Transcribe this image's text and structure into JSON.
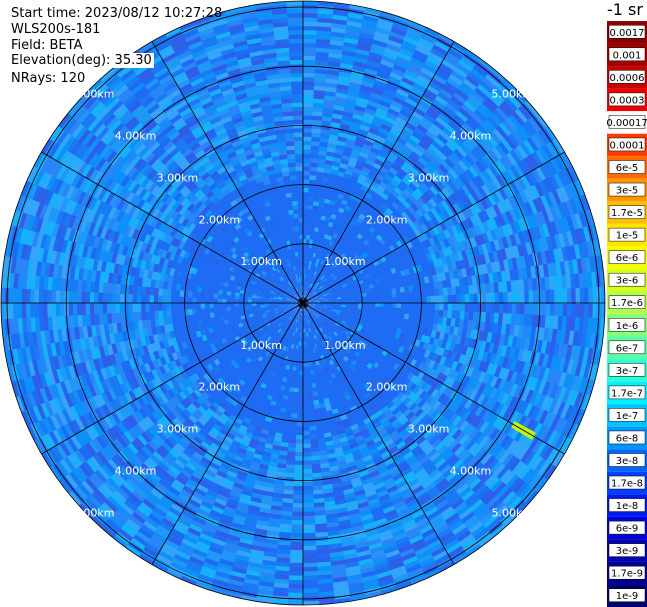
{
  "header": {
    "start_time": "Start time: 2023/08/12 10:27:28",
    "device": "WLS200s-181",
    "field": "Field: BETA",
    "elevation": "Elevation(deg): 35.30",
    "nrays": "NRays: 120"
  },
  "colorbar": {
    "title": "-1 sr",
    "ticks": [
      "0.0017",
      "0.001",
      "0.0006",
      "0.0003",
      "0.00017",
      "0.0001",
      "6e-5",
      "3e-5",
      "1.7e-5",
      "1e-5",
      "6e-6",
      "3e-6",
      "1.7e-6",
      "1e-6",
      "6e-7",
      "3e-7",
      "1.7e-7",
      "1e-7",
      "6e-8",
      "3e-8",
      "1.7e-8",
      "1e-8",
      "6e-9",
      "3e-9",
      "1.7e-9",
      "1e-9"
    ],
    "colors": [
      "#8b0000",
      "#a00000",
      "#c80000",
      "#ee0000",
      "#ffffff",
      "#ff3a00",
      "#ff6a00",
      "#ff9500",
      "#ffbf00",
      "#ffe400",
      "#f2ff00",
      "#d6ff1a",
      "#b4ff4a",
      "#86ff7a",
      "#5affa5",
      "#2dffd2",
      "#00f0ff",
      "#00c4ff",
      "#0096ff",
      "#0066ff",
      "#0040ff",
      "#0018f0",
      "#0000d8",
      "#0000b4",
      "#000090",
      "#000070"
    ]
  },
  "chart_data": {
    "type": "heatmap",
    "subtype": "polar PPI scan",
    "field": "BETA",
    "units": "-1 sr",
    "range_rings_km": [
      1,
      2,
      3,
      4,
      5
    ],
    "ring_labels": [
      "1.00km",
      "2.00km",
      "3.00km",
      "4.00km",
      "5.00km"
    ],
    "radial_spokes_deg": [
      0,
      30,
      60,
      90,
      120,
      150,
      180,
      210,
      240,
      270,
      300,
      330
    ],
    "max_range_km": 5.1,
    "nrays": 120,
    "dominant_value_band": [
      "1e-8",
      "1e-7"
    ],
    "hotspot": {
      "azimuth_deg": 120,
      "range_km": 4.3,
      "value": "1.7e-6"
    }
  }
}
